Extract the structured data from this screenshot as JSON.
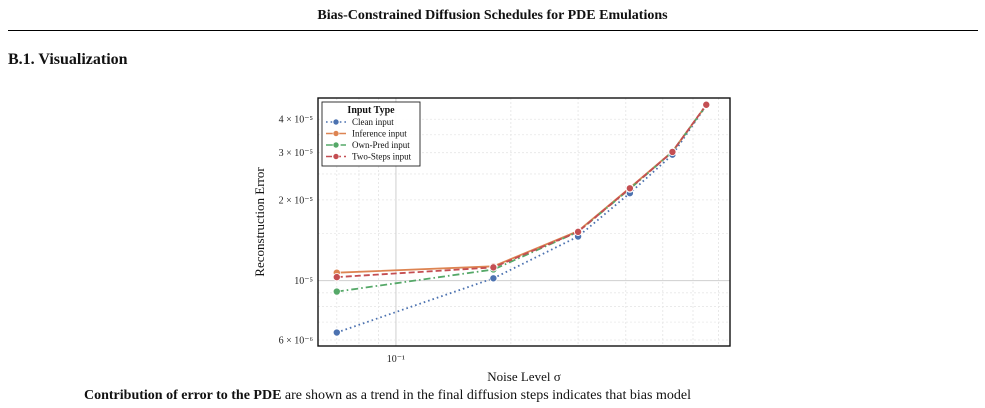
{
  "header": {
    "running_title": "Bias-Constrained Diffusion Schedules for PDE Emulations"
  },
  "section": {
    "heading": "B.1. Visualization"
  },
  "chart_data": {
    "type": "line",
    "xlabel": "Noise Level σ",
    "ylabel": "Reconstruction Error",
    "x_scale": "log",
    "y_scale": "log",
    "xlim": [
      0.0625,
      0.75
    ],
    "ylim": [
      5.7e-06,
      4.8e-05
    ],
    "x_ticks": [
      {
        "value": 0.1,
        "label": "10⁻¹"
      }
    ],
    "y_ticks": [
      {
        "value": 6e-06,
        "label": "6 × 10⁻⁶"
      },
      {
        "value": 1e-05,
        "label": "10⁻⁵"
      },
      {
        "value": 2e-05,
        "label": "2 × 10⁻⁵"
      },
      {
        "value": 3e-05,
        "label": "3 × 10⁻⁵"
      },
      {
        "value": 4e-05,
        "label": "4 × 10⁻⁵"
      }
    ],
    "x": [
      0.07,
      0.18,
      0.3,
      0.41,
      0.53,
      0.65
    ],
    "series": [
      {
        "name": "Clean input",
        "color": "#4c72b0",
        "dash": "dotted",
        "values": [
          6.4e-06,
          1.02e-05,
          1.46e-05,
          2.12e-05,
          2.95e-05,
          4.5e-05
        ]
      },
      {
        "name": "Inference input",
        "color": "#dd8452",
        "dash": "solid",
        "values": [
          1.07e-05,
          1.13e-05,
          1.53e-05,
          2.22e-05,
          3.03e-05,
          4.52e-05
        ]
      },
      {
        "name": "Own-Pred input",
        "color": "#55a868",
        "dash": "dashdot",
        "values": [
          9.1e-06,
          1.1e-05,
          1.52e-05,
          2.2e-05,
          3.02e-05,
          4.51e-05
        ]
      },
      {
        "name": "Two-Steps input",
        "color": "#c44e52",
        "dash": "dashed",
        "values": [
          1.03e-05,
          1.12e-05,
          1.52e-05,
          2.21e-05,
          3.02e-05,
          4.53e-05
        ]
      }
    ],
    "legend": {
      "title": "Input Type",
      "placement": "top-left"
    },
    "grid": true
  },
  "caption": {
    "lead": "Contribution of error to the PDE",
    "rest": "are shown as a trend in the final diffusion steps indicates that bias model"
  }
}
